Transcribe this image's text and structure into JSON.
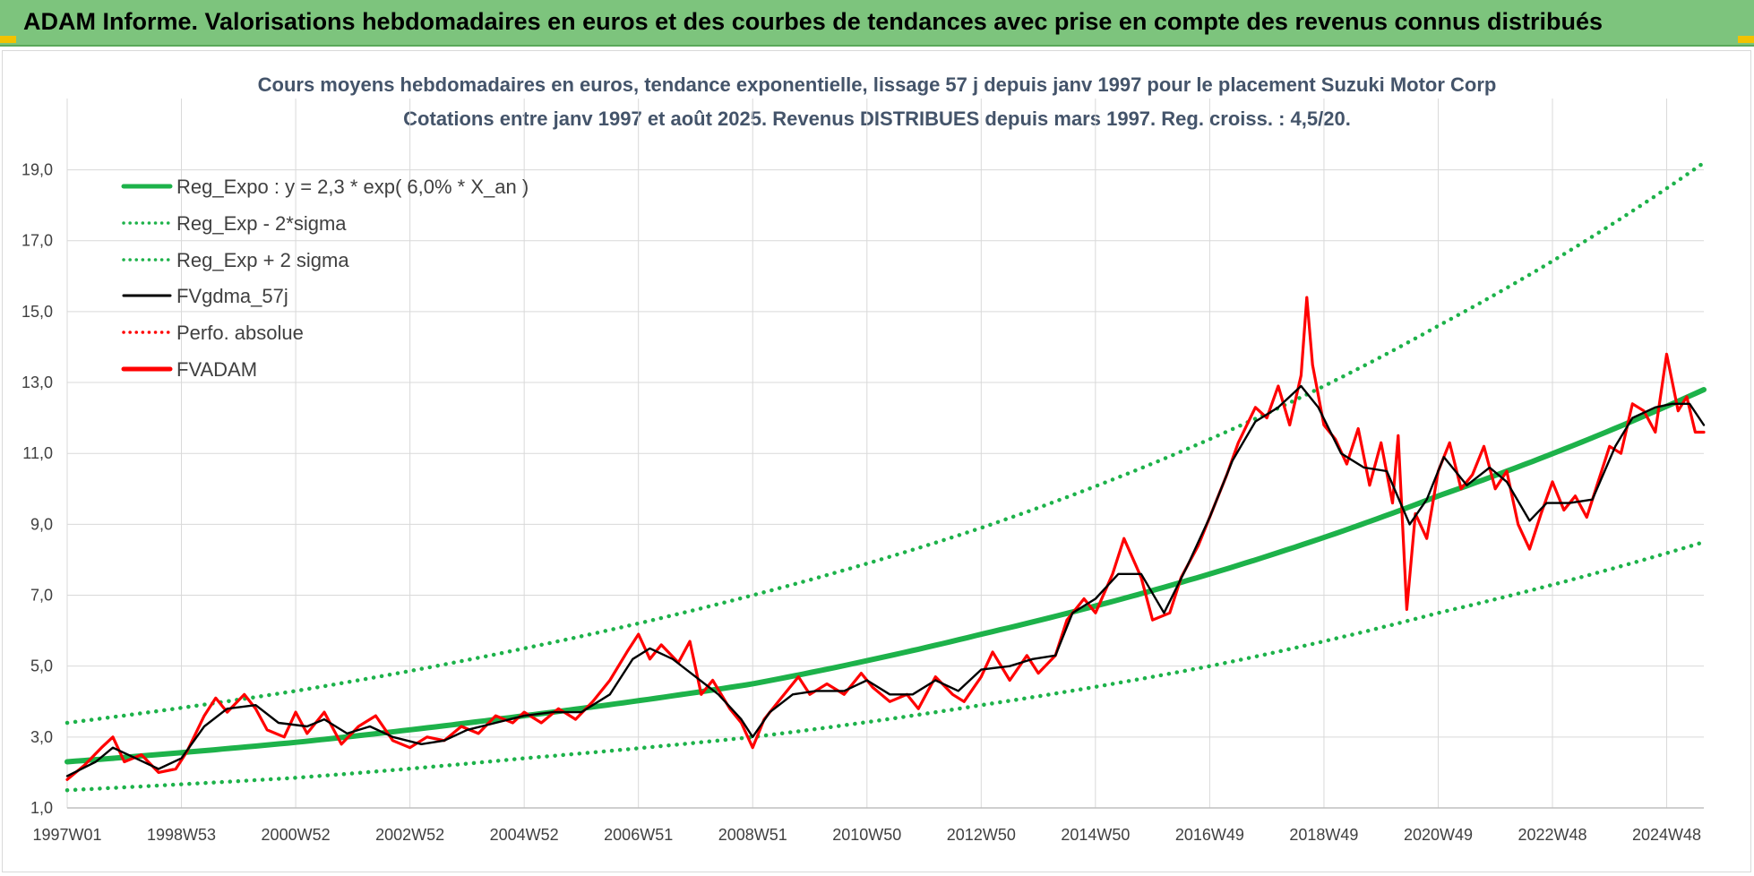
{
  "banner": {
    "title": "ADAM Informe. Valorisations hebdomadaires en euros et des courbes de tendances avec prise en compte des revenus connus distribués"
  },
  "chart_data": {
    "type": "line",
    "title": "Cours moyens hebdomadaires en euros, tendance exponentielle, lissage 57 j depuis janv 1997 pour le placement Suzuki Motor Corp",
    "subtitle": "Cotations entre janv 1997 et août 2025.  Revenus DISTRIBUES depuis mars 1997. Reg. croiss. : 4,5/20.",
    "xlabel": "",
    "ylabel": "",
    "ylim": [
      1.0,
      20.0
    ],
    "y_ticks": [
      "1,0",
      "3,0",
      "5,0",
      "7,0",
      "9,0",
      "11,0",
      "13,0",
      "15,0",
      "17,0",
      "19,0"
    ],
    "x_range": [
      1997.0,
      2025.65
    ],
    "x_ticks": [
      {
        "label": "1997W01",
        "year": 1997.0
      },
      {
        "label": "1998W53",
        "year": 1999.0
      },
      {
        "label": "2000W52",
        "year": 2001.0
      },
      {
        "label": "2002W52",
        "year": 2003.0
      },
      {
        "label": "2004W52",
        "year": 2005.0
      },
      {
        "label": "2006W51",
        "year": 2007.0
      },
      {
        "label": "2008W51",
        "year": 2009.0
      },
      {
        "label": "2010W50",
        "year": 2011.0
      },
      {
        "label": "2012W50",
        "year": 2013.0
      },
      {
        "label": "2014W50",
        "year": 2015.0
      },
      {
        "label": "2016W49",
        "year": 2017.0
      },
      {
        "label": "2018W49",
        "year": 2019.0
      },
      {
        "label": "2020W49",
        "year": 2021.0
      },
      {
        "label": "2022W48",
        "year": 2023.0
      },
      {
        "label": "2024W48",
        "year": 2025.0
      }
    ],
    "grid": true,
    "legend_position": "top-left",
    "series": [
      {
        "name": "Reg_Expo : y = 2,3 * exp( 6,0% *  X_an )",
        "color": "#1db24a",
        "style": "solid-thick",
        "points": [
          [
            1997.0,
            2.3
          ],
          [
            2001.0,
            2.85
          ],
          [
            2005.0,
            3.6
          ],
          [
            2009.0,
            4.5
          ],
          [
            2013.0,
            5.9
          ],
          [
            2017.0,
            7.6
          ],
          [
            2021.0,
            9.8
          ],
          [
            2025.65,
            12.8
          ]
        ]
      },
      {
        "name": "Reg_Exp - 2*sigma",
        "color": "#1db24a",
        "style": "dotted",
        "points": [
          [
            1997.0,
            1.5
          ],
          [
            2001.0,
            1.85
          ],
          [
            2005.0,
            2.4
          ],
          [
            2009.0,
            3.0
          ],
          [
            2013.0,
            3.9
          ],
          [
            2017.0,
            5.0
          ],
          [
            2021.0,
            6.5
          ],
          [
            2025.65,
            8.5
          ]
        ]
      },
      {
        "name": "Reg_Exp + 2 sigma",
        "color": "#1db24a",
        "style": "dotted",
        "points": [
          [
            1997.0,
            3.4
          ],
          [
            2001.0,
            4.3
          ],
          [
            2005.0,
            5.5
          ],
          [
            2009.0,
            7.0
          ],
          [
            2013.0,
            8.9
          ],
          [
            2017.0,
            11.4
          ],
          [
            2021.0,
            14.6
          ],
          [
            2025.65,
            19.2
          ]
        ]
      },
      {
        "name": "FVgdma_57j",
        "color": "#000000",
        "style": "solid",
        "points": [
          [
            1997.0,
            1.9
          ],
          [
            1997.5,
            2.3
          ],
          [
            1997.8,
            2.7
          ],
          [
            1998.2,
            2.4
          ],
          [
            1998.6,
            2.1
          ],
          [
            1999.0,
            2.4
          ],
          [
            1999.4,
            3.3
          ],
          [
            1999.8,
            3.8
          ],
          [
            2000.3,
            3.9
          ],
          [
            2000.7,
            3.4
          ],
          [
            2001.2,
            3.3
          ],
          [
            2001.5,
            3.5
          ],
          [
            2001.9,
            3.1
          ],
          [
            2002.3,
            3.3
          ],
          [
            2002.7,
            3.0
          ],
          [
            2003.2,
            2.8
          ],
          [
            2003.6,
            2.9
          ],
          [
            2004.0,
            3.2
          ],
          [
            2004.5,
            3.4
          ],
          [
            2005.0,
            3.6
          ],
          [
            2005.5,
            3.7
          ],
          [
            2006.0,
            3.7
          ],
          [
            2006.5,
            4.2
          ],
          [
            2006.9,
            5.2
          ],
          [
            2007.2,
            5.5
          ],
          [
            2007.6,
            5.2
          ],
          [
            2008.0,
            4.7
          ],
          [
            2008.4,
            4.2
          ],
          [
            2008.8,
            3.5
          ],
          [
            2009.0,
            3.0
          ],
          [
            2009.3,
            3.7
          ],
          [
            2009.7,
            4.2
          ],
          [
            2010.1,
            4.3
          ],
          [
            2010.6,
            4.3
          ],
          [
            2011.0,
            4.6
          ],
          [
            2011.4,
            4.2
          ],
          [
            2011.8,
            4.2
          ],
          [
            2012.2,
            4.6
          ],
          [
            2012.6,
            4.3
          ],
          [
            2013.0,
            4.9
          ],
          [
            2013.5,
            5.0
          ],
          [
            2013.9,
            5.2
          ],
          [
            2014.3,
            5.3
          ],
          [
            2014.6,
            6.5
          ],
          [
            2015.0,
            6.9
          ],
          [
            2015.4,
            7.6
          ],
          [
            2015.8,
            7.6
          ],
          [
            2016.2,
            6.5
          ],
          [
            2016.6,
            7.8
          ],
          [
            2017.0,
            9.2
          ],
          [
            2017.4,
            10.8
          ],
          [
            2017.8,
            11.9
          ],
          [
            2018.2,
            12.3
          ],
          [
            2018.6,
            12.9
          ],
          [
            2018.9,
            12.3
          ],
          [
            2019.3,
            11.0
          ],
          [
            2019.7,
            10.6
          ],
          [
            2020.1,
            10.5
          ],
          [
            2020.5,
            9.0
          ],
          [
            2020.8,
            9.7
          ],
          [
            2021.1,
            10.9
          ],
          [
            2021.5,
            10.1
          ],
          [
            2021.9,
            10.6
          ],
          [
            2022.2,
            10.2
          ],
          [
            2022.6,
            9.1
          ],
          [
            2022.9,
            9.6
          ],
          [
            2023.3,
            9.6
          ],
          [
            2023.7,
            9.7
          ],
          [
            2024.1,
            11.2
          ],
          [
            2024.4,
            12.0
          ],
          [
            2024.8,
            12.3
          ],
          [
            2025.1,
            12.4
          ],
          [
            2025.4,
            12.4
          ],
          [
            2025.65,
            11.8
          ]
        ]
      },
      {
        "name": "Perfo. absolue",
        "color": "#ff0000",
        "style": "dotted",
        "points": []
      },
      {
        "name": "FVADAM",
        "color": "#ff0000",
        "style": "solid-thick",
        "points": [
          [
            1997.0,
            1.8
          ],
          [
            1997.3,
            2.2
          ],
          [
            1997.6,
            2.7
          ],
          [
            1997.8,
            3.0
          ],
          [
            1998.0,
            2.3
          ],
          [
            1998.3,
            2.5
          ],
          [
            1998.6,
            2.0
          ],
          [
            1998.9,
            2.1
          ],
          [
            1999.1,
            2.6
          ],
          [
            1999.4,
            3.6
          ],
          [
            1999.6,
            4.1
          ],
          [
            1999.8,
            3.7
          ],
          [
            2000.1,
            4.2
          ],
          [
            2000.3,
            3.8
          ],
          [
            2000.5,
            3.2
          ],
          [
            2000.8,
            3.0
          ],
          [
            2001.0,
            3.7
          ],
          [
            2001.2,
            3.1
          ],
          [
            2001.5,
            3.7
          ],
          [
            2001.8,
            2.8
          ],
          [
            2002.1,
            3.3
          ],
          [
            2002.4,
            3.6
          ],
          [
            2002.7,
            2.9
          ],
          [
            2003.0,
            2.7
          ],
          [
            2003.3,
            3.0
          ],
          [
            2003.6,
            2.9
          ],
          [
            2003.9,
            3.3
          ],
          [
            2004.2,
            3.1
          ],
          [
            2004.5,
            3.6
          ],
          [
            2004.8,
            3.4
          ],
          [
            2005.0,
            3.7
          ],
          [
            2005.3,
            3.4
          ],
          [
            2005.6,
            3.8
          ],
          [
            2005.9,
            3.5
          ],
          [
            2006.2,
            4.0
          ],
          [
            2006.5,
            4.6
          ],
          [
            2006.8,
            5.4
          ],
          [
            2007.0,
            5.9
          ],
          [
            2007.2,
            5.2
          ],
          [
            2007.4,
            5.6
          ],
          [
            2007.7,
            5.1
          ],
          [
            2007.9,
            5.7
          ],
          [
            2008.1,
            4.2
          ],
          [
            2008.3,
            4.6
          ],
          [
            2008.6,
            3.8
          ],
          [
            2008.8,
            3.4
          ],
          [
            2009.0,
            2.7
          ],
          [
            2009.2,
            3.5
          ],
          [
            2009.5,
            4.1
          ],
          [
            2009.8,
            4.7
          ],
          [
            2010.0,
            4.2
          ],
          [
            2010.3,
            4.5
          ],
          [
            2010.6,
            4.2
          ],
          [
            2010.9,
            4.8
          ],
          [
            2011.1,
            4.4
          ],
          [
            2011.4,
            4.0
          ],
          [
            2011.7,
            4.2
          ],
          [
            2011.9,
            3.8
          ],
          [
            2012.2,
            4.7
          ],
          [
            2012.5,
            4.2
          ],
          [
            2012.7,
            4.0
          ],
          [
            2013.0,
            4.7
          ],
          [
            2013.2,
            5.4
          ],
          [
            2013.5,
            4.6
          ],
          [
            2013.8,
            5.3
          ],
          [
            2014.0,
            4.8
          ],
          [
            2014.3,
            5.3
          ],
          [
            2014.5,
            6.3
          ],
          [
            2014.8,
            6.9
          ],
          [
            2015.0,
            6.5
          ],
          [
            2015.3,
            7.6
          ],
          [
            2015.5,
            8.6
          ],
          [
            2015.8,
            7.5
          ],
          [
            2016.0,
            6.3
          ],
          [
            2016.3,
            6.5
          ],
          [
            2016.5,
            7.5
          ],
          [
            2016.8,
            8.4
          ],
          [
            2017.0,
            9.2
          ],
          [
            2017.3,
            10.4
          ],
          [
            2017.5,
            11.3
          ],
          [
            2017.8,
            12.3
          ],
          [
            2018.0,
            12.0
          ],
          [
            2018.2,
            12.9
          ],
          [
            2018.4,
            11.8
          ],
          [
            2018.6,
            13.2
          ],
          [
            2018.7,
            15.4
          ],
          [
            2018.8,
            13.5
          ],
          [
            2019.0,
            11.8
          ],
          [
            2019.2,
            11.4
          ],
          [
            2019.4,
            10.7
          ],
          [
            2019.6,
            11.7
          ],
          [
            2019.8,
            10.1
          ],
          [
            2020.0,
            11.3
          ],
          [
            2020.2,
            9.6
          ],
          [
            2020.3,
            11.5
          ],
          [
            2020.45,
            6.6
          ],
          [
            2020.6,
            9.3
          ],
          [
            2020.8,
            8.6
          ],
          [
            2021.0,
            10.5
          ],
          [
            2021.2,
            11.3
          ],
          [
            2021.4,
            10.0
          ],
          [
            2021.6,
            10.4
          ],
          [
            2021.8,
            11.2
          ],
          [
            2022.0,
            10.0
          ],
          [
            2022.2,
            10.5
          ],
          [
            2022.4,
            9.0
          ],
          [
            2022.6,
            8.3
          ],
          [
            2022.8,
            9.3
          ],
          [
            2023.0,
            10.2
          ],
          [
            2023.2,
            9.4
          ],
          [
            2023.4,
            9.8
          ],
          [
            2023.6,
            9.2
          ],
          [
            2023.8,
            10.2
          ],
          [
            2024.0,
            11.2
          ],
          [
            2024.2,
            11.0
          ],
          [
            2024.4,
            12.4
          ],
          [
            2024.6,
            12.2
          ],
          [
            2024.8,
            11.6
          ],
          [
            2025.0,
            13.8
          ],
          [
            2025.2,
            12.2
          ],
          [
            2025.35,
            12.6
          ],
          [
            2025.5,
            11.6
          ],
          [
            2025.65,
            11.6
          ]
        ]
      }
    ]
  }
}
